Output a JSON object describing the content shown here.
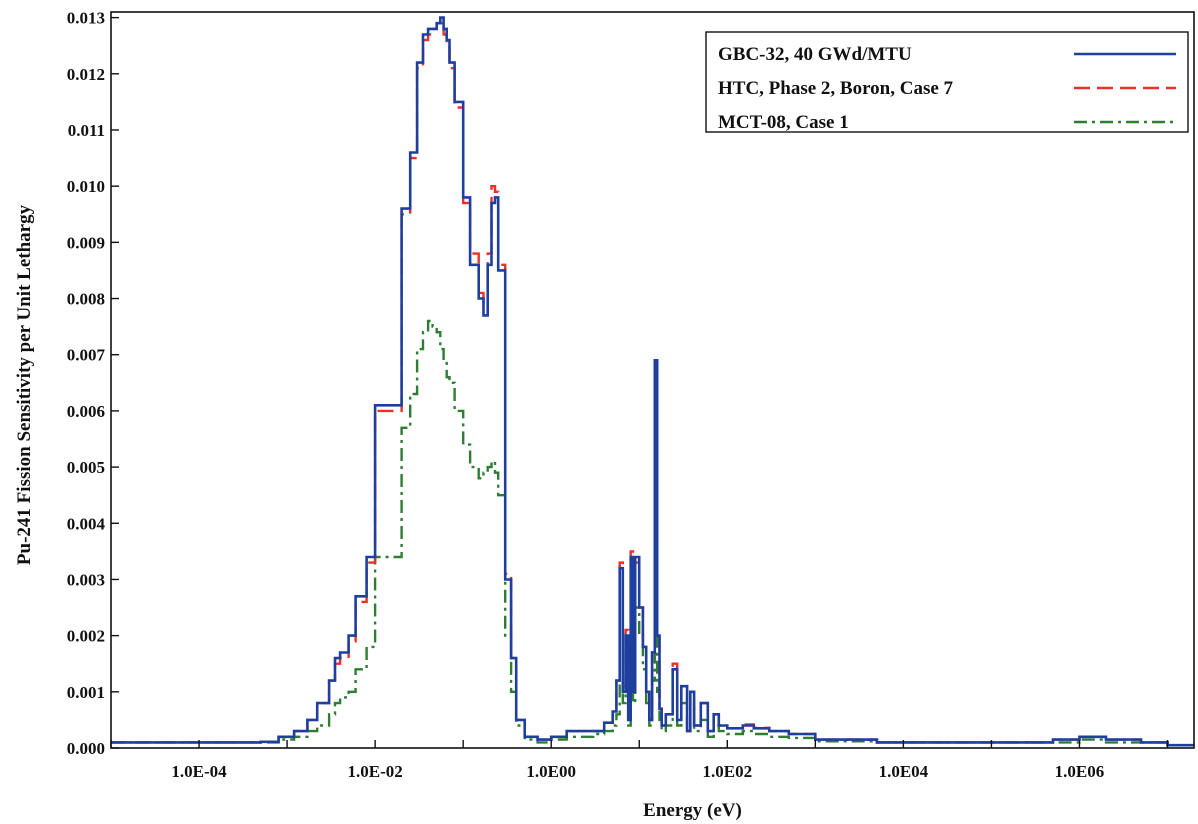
{
  "chart_data": {
    "type": "line",
    "title": "",
    "xlabel": "Energy (eV)",
    "ylabel": "Pu-241 Fission Sensitivity per Unit Lethargy",
    "x_scale": "log",
    "xlim": [
      1e-05,
      20000000
    ],
    "ylim": [
      0,
      0.0131
    ],
    "x_ticks": [
      0.0001,
      0.01,
      1,
      100,
      10000,
      1000000
    ],
    "x_tick_labels": [
      "1.0E-04",
      "1.0E-02",
      "1.0E00",
      "1.0E02",
      "1.0E04",
      "1.0E06"
    ],
    "y_ticks": [
      0,
      0.001,
      0.002,
      0.003,
      0.004,
      0.005,
      0.006,
      0.007,
      0.008,
      0.009,
      0.01,
      0.011,
      0.012,
      0.013
    ],
    "y_tick_labels": [
      "0.000",
      "0.001",
      "0.002",
      "0.003",
      "0.004",
      "0.005",
      "0.006",
      "0.007",
      "0.008",
      "0.009",
      "0.010",
      "0.011",
      "0.012",
      "0.013"
    ],
    "grid": false,
    "legend_position": "top-right",
    "series": [
      {
        "name": "GBC-32, 40 GWd/MTU",
        "color": "#1f3f9e",
        "dash": "solid",
        "x": [
          1e-05,
          0.0001,
          0.0003,
          0.0005,
          0.0008,
          0.0012,
          0.0017,
          0.0022,
          0.003,
          0.0035,
          0.004,
          0.005,
          0.006,
          0.008,
          0.01,
          0.02,
          0.025,
          0.03,
          0.035,
          0.04,
          0.045,
          0.05,
          0.055,
          0.06,
          0.065,
          0.07,
          0.08,
          0.1,
          0.12,
          0.15,
          0.17,
          0.19,
          0.21,
          0.23,
          0.25,
          0.3,
          0.35,
          0.4,
          0.5,
          0.7,
          1,
          1.5,
          2,
          3,
          4,
          5,
          5.5,
          6,
          6.5,
          7,
          7.5,
          8,
          8.5,
          9,
          10,
          11,
          12,
          13,
          14,
          15,
          16,
          17,
          18,
          20,
          24,
          27,
          30,
          35,
          38,
          42,
          50,
          60,
          70,
          80,
          100,
          150,
          200,
          300,
          500,
          1000,
          5000,
          20000,
          100000,
          500000,
          1000000,
          2000000,
          5000000,
          10000000,
          20000000
        ],
        "values": [
          0.0001,
          0.0001,
          0.0001,
          0.00011,
          0.0002,
          0.0003,
          0.0005,
          0.0008,
          0.0012,
          0.0016,
          0.0017,
          0.002,
          0.0027,
          0.0034,
          0.0061,
          0.0096,
          0.0106,
          0.0122,
          0.0127,
          0.0128,
          0.0128,
          0.0129,
          0.013,
          0.0128,
          0.0126,
          0.0122,
          0.0115,
          0.0098,
          0.0086,
          0.008,
          0.0077,
          0.0086,
          0.0097,
          0.0098,
          0.0085,
          0.003,
          0.0016,
          0.0005,
          0.0002,
          0.00015,
          0.0002,
          0.0003,
          0.0003,
          0.0003,
          0.00045,
          0.00065,
          0.0012,
          0.0032,
          0.001,
          0.002,
          0.0005,
          0.0034,
          0.001,
          0.0034,
          0.0025,
          0.0018,
          0.001,
          0.0005,
          0.0017,
          0.0069,
          0.002,
          0.0007,
          0.0004,
          0.0006,
          0.0014,
          0.0005,
          0.0011,
          0.0003,
          0.001,
          0.0004,
          0.0008,
          0.0003,
          0.0006,
          0.0004,
          0.00035,
          0.0004,
          0.00035,
          0.0003,
          0.00025,
          0.00015,
          0.0001,
          0.0001,
          0.0001,
          0.00015,
          0.0002,
          0.00015,
          0.0001,
          5e-05,
          5e-05
        ]
      },
      {
        "name": "HTC, Phase 2, Boron, Case 7",
        "color": "#e8312a",
        "dash": "dashed",
        "x": [
          1e-05,
          0.0001,
          0.0003,
          0.0005,
          0.0008,
          0.0012,
          0.0017,
          0.0022,
          0.003,
          0.0035,
          0.004,
          0.005,
          0.006,
          0.008,
          0.01,
          0.02,
          0.025,
          0.03,
          0.035,
          0.04,
          0.045,
          0.05,
          0.055,
          0.06,
          0.065,
          0.07,
          0.08,
          0.1,
          0.12,
          0.15,
          0.17,
          0.19,
          0.21,
          0.23,
          0.25,
          0.3,
          0.35,
          0.4,
          0.5,
          0.7,
          1,
          1.5,
          2,
          3,
          4,
          5,
          5.5,
          6,
          6.5,
          7,
          7.5,
          8,
          8.5,
          9,
          10,
          11,
          12,
          13,
          14,
          15,
          16,
          17,
          18,
          20,
          24,
          27,
          30,
          35,
          38,
          42,
          50,
          60,
          70,
          80,
          100,
          150,
          200,
          300,
          500,
          1000,
          5000,
          20000,
          100000,
          500000,
          1000000,
          2000000,
          5000000,
          10000000,
          20000000
        ],
        "values": [
          0.0001,
          0.0001,
          0.0001,
          0.00011,
          0.0002,
          0.0003,
          0.0005,
          0.0008,
          0.0012,
          0.0015,
          0.0016,
          0.0019,
          0.0026,
          0.0033,
          0.006,
          0.0095,
          0.0105,
          0.0121,
          0.0126,
          0.0127,
          0.0128,
          0.0129,
          0.0129,
          0.0127,
          0.0125,
          0.0121,
          0.0114,
          0.0097,
          0.0088,
          0.0081,
          0.0079,
          0.0088,
          0.01,
          0.0099,
          0.0086,
          0.0031,
          0.0016,
          0.0005,
          0.0002,
          0.00015,
          0.0002,
          0.0003,
          0.0003,
          0.0003,
          0.00045,
          0.00065,
          0.0012,
          0.0033,
          0.0011,
          0.0021,
          0.0006,
          0.0035,
          0.0011,
          0.0033,
          0.0025,
          0.0018,
          0.001,
          0.0005,
          0.0017,
          0.0068,
          0.002,
          0.0007,
          0.0004,
          0.0006,
          0.0015,
          0.0005,
          0.0011,
          0.0003,
          0.001,
          0.0004,
          0.0008,
          0.0003,
          0.0006,
          0.0004,
          0.00035,
          0.00042,
          0.00036,
          0.0003,
          0.00025,
          0.00015,
          0.0001,
          0.0001,
          0.0001,
          0.00015,
          0.0002,
          0.00015,
          0.0001,
          5e-05,
          5e-05
        ]
      },
      {
        "name": "MCT-08, Case 1",
        "color": "#2e7d32",
        "dash": "dashdot",
        "x": [
          1e-05,
          0.0001,
          0.0003,
          0.0005,
          0.0008,
          0.0012,
          0.0017,
          0.0022,
          0.003,
          0.0035,
          0.004,
          0.005,
          0.006,
          0.008,
          0.01,
          0.02,
          0.025,
          0.03,
          0.035,
          0.04,
          0.045,
          0.05,
          0.055,
          0.06,
          0.065,
          0.07,
          0.08,
          0.1,
          0.12,
          0.15,
          0.17,
          0.19,
          0.21,
          0.23,
          0.25,
          0.3,
          0.35,
          0.4,
          0.5,
          0.7,
          1,
          1.5,
          2,
          3,
          4,
          5,
          5.5,
          6,
          6.5,
          7,
          7.5,
          8,
          8.5,
          9,
          10,
          11,
          12,
          13,
          14,
          15,
          16,
          17,
          18,
          20,
          24,
          27,
          30,
          35,
          38,
          42,
          50,
          60,
          70,
          80,
          100,
          150,
          200,
          300,
          500,
          1000,
          5000,
          20000,
          100000,
          500000,
          1000000,
          2000000,
          5000000,
          10000000,
          20000000
        ],
        "values": [
          0.0001,
          0.0001,
          0.0001,
          0.0001,
          0.00015,
          0.0002,
          0.0003,
          0.0004,
          0.0006,
          0.0008,
          0.0009,
          0.001,
          0.0014,
          0.0018,
          0.0034,
          0.0057,
          0.0063,
          0.0071,
          0.0074,
          0.0076,
          0.0075,
          0.0074,
          0.0071,
          0.0069,
          0.0066,
          0.0065,
          0.006,
          0.0054,
          0.005,
          0.0048,
          0.0049,
          0.005,
          0.0051,
          0.0049,
          0.0045,
          0.002,
          0.001,
          0.0004,
          0.00015,
          0.0001,
          0.00015,
          0.0002,
          0.0002,
          0.00025,
          0.0003,
          0.0004,
          0.0006,
          0.0016,
          0.0008,
          0.0014,
          0.0004,
          0.0023,
          0.0008,
          0.0025,
          0.002,
          0.0014,
          0.0008,
          0.0004,
          0.0012,
          0.0022,
          0.001,
          0.0005,
          0.0003,
          0.0004,
          0.001,
          0.0004,
          0.0008,
          0.0003,
          0.0007,
          0.0003,
          0.0005,
          0.0002,
          0.0004,
          0.0003,
          0.00025,
          0.0003,
          0.00025,
          0.0002,
          0.00018,
          0.00012,
          0.0001,
          0.0001,
          0.0001,
          0.0001,
          0.00015,
          0.0001,
          0.0001,
          5e-05,
          5e-05
        ]
      }
    ]
  }
}
